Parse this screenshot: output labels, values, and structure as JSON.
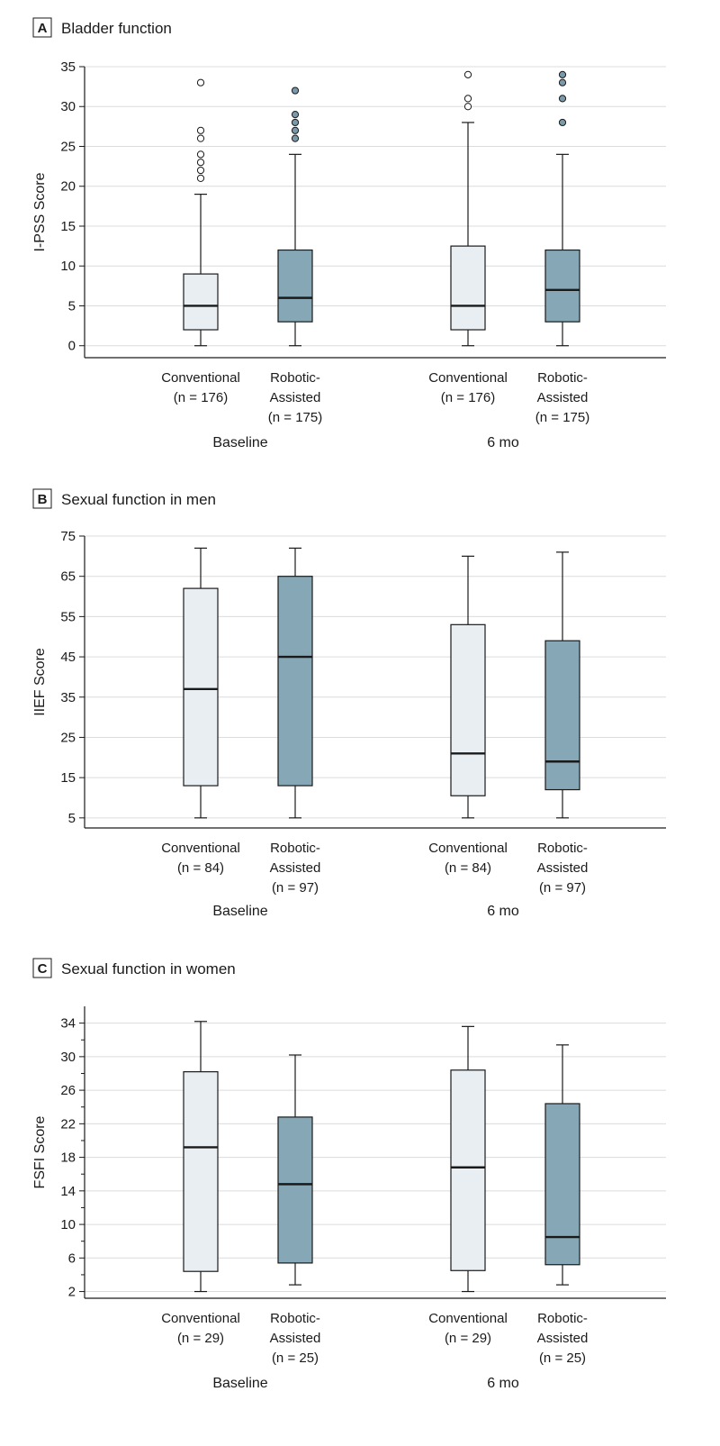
{
  "colors": {
    "conventional_fill": "#e9eef2",
    "robotic_fill": "#85a7b6",
    "conventional_outlier": "#ffffff",
    "robotic_outlier": "#7a9aaa",
    "grid": "#dcdcdc",
    "ink": "#1a1a1a"
  },
  "chart_data": [
    {
      "type": "box",
      "panel_letter": "A",
      "title": "Bladder function",
      "ylabel": "I-PSS Score",
      "ylim": [
        -1.5,
        35
      ],
      "yticks": [
        0,
        5,
        10,
        15,
        20,
        25,
        30,
        35
      ],
      "minor_ticks": false,
      "grid": true,
      "groups": [
        "Baseline",
        "6 mo"
      ],
      "boxes": [
        {
          "group": 0,
          "series": "conventional",
          "label_lines": [
            "Conventional",
            "(n = 176)"
          ],
          "min": 0,
          "q1": 2,
          "median": 5,
          "q3": 9,
          "max": 19,
          "outliers": [
            21,
            22,
            23,
            24,
            26,
            27,
            33
          ]
        },
        {
          "group": 0,
          "series": "robotic",
          "label_lines": [
            "Robotic-",
            "Assisted",
            "(n = 175)"
          ],
          "min": 0,
          "q1": 3,
          "median": 6,
          "q3": 12,
          "max": 24,
          "outliers": [
            26,
            27,
            28,
            29,
            32
          ]
        },
        {
          "group": 1,
          "series": "conventional",
          "label_lines": [
            "Conventional",
            "(n = 176)"
          ],
          "min": 0,
          "q1": 2,
          "median": 5,
          "q3": 12.5,
          "max": 28,
          "outliers": [
            30,
            31,
            34
          ]
        },
        {
          "group": 1,
          "series": "robotic",
          "label_lines": [
            "Robotic-",
            "Assisted",
            "(n = 175)"
          ],
          "min": 0,
          "q1": 3,
          "median": 7,
          "q3": 12,
          "max": 24,
          "outliers": [
            28,
            31,
            33,
            34
          ]
        }
      ]
    },
    {
      "type": "box",
      "panel_letter": "B",
      "title": "Sexual function in men",
      "ylabel": "IIEF Score",
      "ylim": [
        2.5,
        75
      ],
      "yticks": [
        5,
        15,
        25,
        35,
        45,
        55,
        65,
        75
      ],
      "minor_ticks": false,
      "grid": true,
      "groups": [
        "Baseline",
        "6 mo"
      ],
      "boxes": [
        {
          "group": 0,
          "series": "conventional",
          "label_lines": [
            "Conventional",
            "(n = 84)"
          ],
          "min": 5,
          "q1": 13,
          "median": 37,
          "q3": 62,
          "max": 72,
          "outliers": []
        },
        {
          "group": 0,
          "series": "robotic",
          "label_lines": [
            "Robotic-",
            "Assisted",
            "(n = 97)"
          ],
          "min": 5,
          "q1": 13,
          "median": 45,
          "q3": 65,
          "max": 72,
          "outliers": []
        },
        {
          "group": 1,
          "series": "conventional",
          "label_lines": [
            "Conventional",
            "(n = 84)"
          ],
          "min": 5,
          "q1": 10.5,
          "median": 21,
          "q3": 53,
          "max": 70,
          "outliers": []
        },
        {
          "group": 1,
          "series": "robotic",
          "label_lines": [
            "Robotic-",
            "Assisted",
            "(n = 97)"
          ],
          "min": 5,
          "q1": 12,
          "median": 19,
          "q3": 49,
          "max": 71,
          "outliers": []
        }
      ]
    },
    {
      "type": "box",
      "panel_letter": "C",
      "title": "Sexual function in women",
      "ylabel": "FSFI Score",
      "ylim": [
        1.2,
        36
      ],
      "yticks": [
        2,
        6,
        10,
        14,
        18,
        22,
        26,
        30,
        34
      ],
      "minor_ticks": true,
      "grid": true,
      "groups": [
        "Baseline",
        "6 mo"
      ],
      "boxes": [
        {
          "group": 0,
          "series": "conventional",
          "label_lines": [
            "Conventional",
            "(n = 29)"
          ],
          "min": 2,
          "q1": 4.4,
          "median": 19.2,
          "q3": 28.2,
          "max": 34.2,
          "outliers": []
        },
        {
          "group": 0,
          "series": "robotic",
          "label_lines": [
            "Robotic-",
            "Assisted",
            "(n = 25)"
          ],
          "min": 2.8,
          "q1": 5.4,
          "median": 14.8,
          "q3": 22.8,
          "max": 30.2,
          "outliers": []
        },
        {
          "group": 1,
          "series": "conventional",
          "label_lines": [
            "Conventional",
            "(n = 29)"
          ],
          "min": 2,
          "q1": 4.5,
          "median": 16.8,
          "q3": 28.4,
          "max": 33.6,
          "outliers": []
        },
        {
          "group": 1,
          "series": "robotic",
          "label_lines": [
            "Robotic-",
            "Assisted",
            "(n = 25)"
          ],
          "min": 2.8,
          "q1": 5.2,
          "median": 8.5,
          "q3": 24.4,
          "max": 31.4,
          "outliers": []
        }
      ]
    }
  ]
}
